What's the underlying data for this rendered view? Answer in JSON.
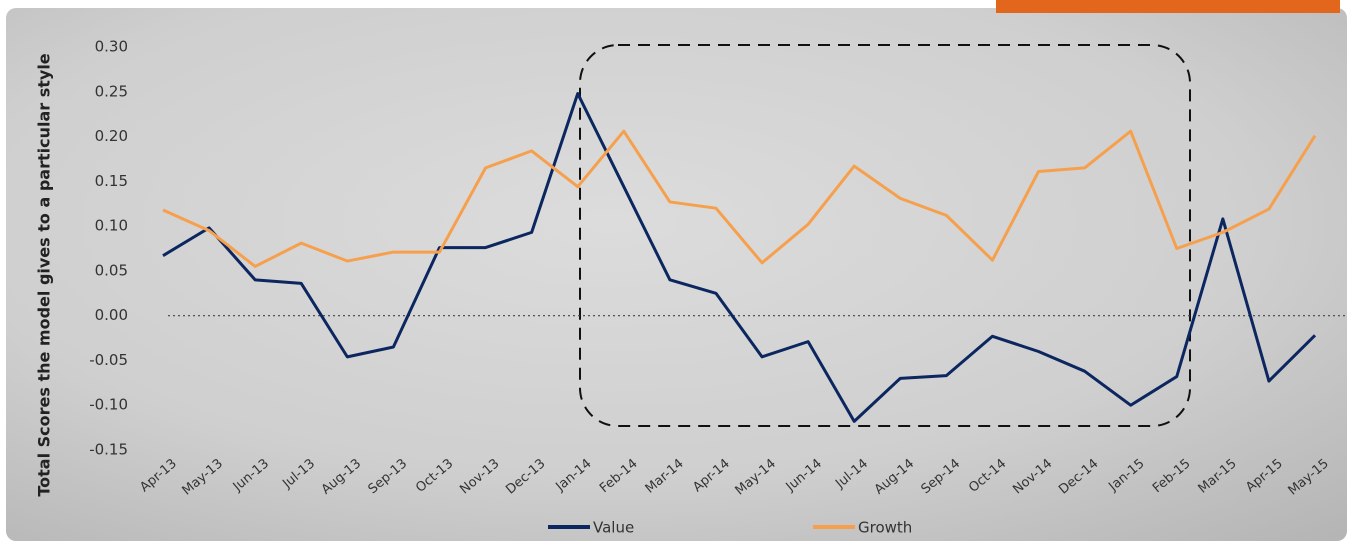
{
  "chart_data": {
    "type": "line",
    "y_label": "Total Scores the model gives to a particular style",
    "categories": [
      "Apr-13",
      "May-13",
      "Jun-13",
      "Jul-13",
      "Aug-13",
      "Sep-13",
      "Oct-13",
      "Nov-13",
      "Dec-13",
      "Jan-14",
      "Feb-14",
      "Mar-14",
      "Apr-14",
      "May-14",
      "Jun-14",
      "Jul-14",
      "Aug-14",
      "Sep-14",
      "Oct-14",
      "Nov-14",
      "Dec-14",
      "Jan-15",
      "Feb-15",
      "Mar-15",
      "Apr-15",
      "May-15"
    ],
    "series": [
      {
        "name": "Value",
        "color": "#0c2660",
        "values": [
          0.067,
          0.098,
          0.04,
          0.036,
          -0.046,
          -0.035,
          0.076,
          0.076,
          0.093,
          0.248,
          0.144,
          0.04,
          0.025,
          -0.046,
          -0.029,
          -0.118,
          -0.07,
          -0.067,
          -0.023,
          -0.04,
          -0.062,
          -0.1,
          -0.068,
          0.108,
          -0.073,
          -0.022
        ]
      },
      {
        "name": "Growth",
        "color": "#f6a04d",
        "values": [
          0.118,
          0.095,
          0.055,
          0.081,
          0.061,
          0.071,
          0.071,
          0.165,
          0.184,
          0.144,
          0.206,
          0.127,
          0.12,
          0.059,
          0.102,
          0.167,
          0.131,
          0.112,
          0.062,
          0.161,
          0.165,
          0.206,
          0.075,
          0.093,
          0.119,
          0.201
        ]
      }
    ],
    "ylim": [
      -0.15,
      0.3
    ],
    "yticks": [
      {
        "value": 0.3,
        "label": "0.30"
      },
      0.25,
      {
        "value": 0.2,
        "label": "0.20"
      },
      0.15,
      {
        "value": 0.1,
        "label": "0.10"
      },
      0.05,
      {
        "value": 0,
        "label": "0.00"
      },
      -0.05,
      {
        "value": -0.1,
        "label": "-0.10"
      },
      -0.15
    ],
    "legend": "bottom"
  }
}
